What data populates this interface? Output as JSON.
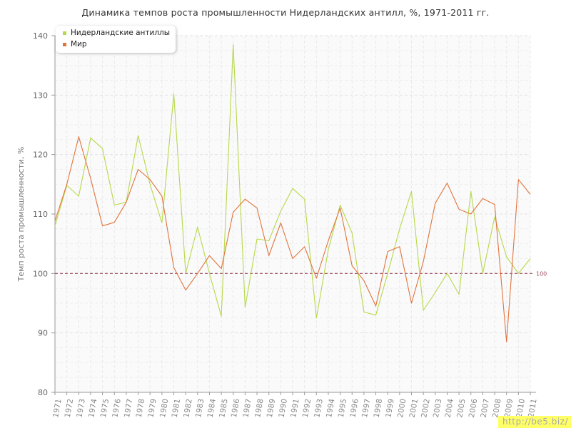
{
  "chart_data": {
    "type": "line",
    "title": "Динамика темпов роста промышленности Нидерландских антилл, %, 1971-2011 гг.",
    "ylabel": "Темп роста промышленности, %",
    "xlabel": "",
    "ylim": [
      80,
      140
    ],
    "yticks": [
      80,
      90,
      100,
      110,
      120,
      130,
      140
    ],
    "grid": true,
    "legend_position": "top-left",
    "x": [
      1971,
      1972,
      1973,
      1974,
      1975,
      1976,
      1977,
      1978,
      1979,
      1980,
      1981,
      1982,
      1983,
      1984,
      1985,
      1986,
      1987,
      1988,
      1989,
      1990,
      1991,
      1992,
      1993,
      1994,
      1995,
      1996,
      1997,
      1998,
      1999,
      2000,
      2001,
      2002,
      2003,
      2004,
      2005,
      2006,
      2007,
      2008,
      2009,
      2010,
      2011
    ],
    "series": [
      {
        "name": "Нидерландские антиллы",
        "color": "#b7d84a",
        "values": [
          108.0,
          114.8,
          113.0,
          122.8,
          121.0,
          111.5,
          112.0,
          123.2,
          115.0,
          108.5,
          130.2,
          100.0,
          107.8,
          100.0,
          92.8,
          138.5,
          94.3,
          105.8,
          105.5,
          110.5,
          114.3,
          112.5,
          92.5,
          104.0,
          111.5,
          106.8,
          93.5,
          93.0,
          100.0,
          107.5,
          113.8,
          93.8,
          96.8,
          100.0,
          96.5,
          113.8,
          100.0,
          109.5,
          102.8,
          100.0,
          102.5
        ]
      },
      {
        "name": "Мир",
        "color": "#e0743d",
        "values": [
          108.8,
          115.0,
          123.0,
          116.0,
          108.0,
          108.6,
          112.0,
          117.5,
          115.8,
          113.0,
          101.0,
          97.2,
          100.0,
          103.0,
          100.8,
          110.3,
          112.5,
          111.0,
          103.0,
          108.5,
          102.5,
          104.5,
          99.2,
          105.5,
          111.0,
          101.3,
          98.8,
          94.5,
          103.7,
          104.5,
          95.0,
          102.0,
          111.8,
          115.2,
          110.8,
          110.0,
          112.6,
          111.6,
          88.5,
          115.8,
          113.3
        ]
      }
    ],
    "reference_line": {
      "value": 100,
      "label": "100",
      "color": "#a05060"
    }
  },
  "watermark": "http://be5.biz/"
}
